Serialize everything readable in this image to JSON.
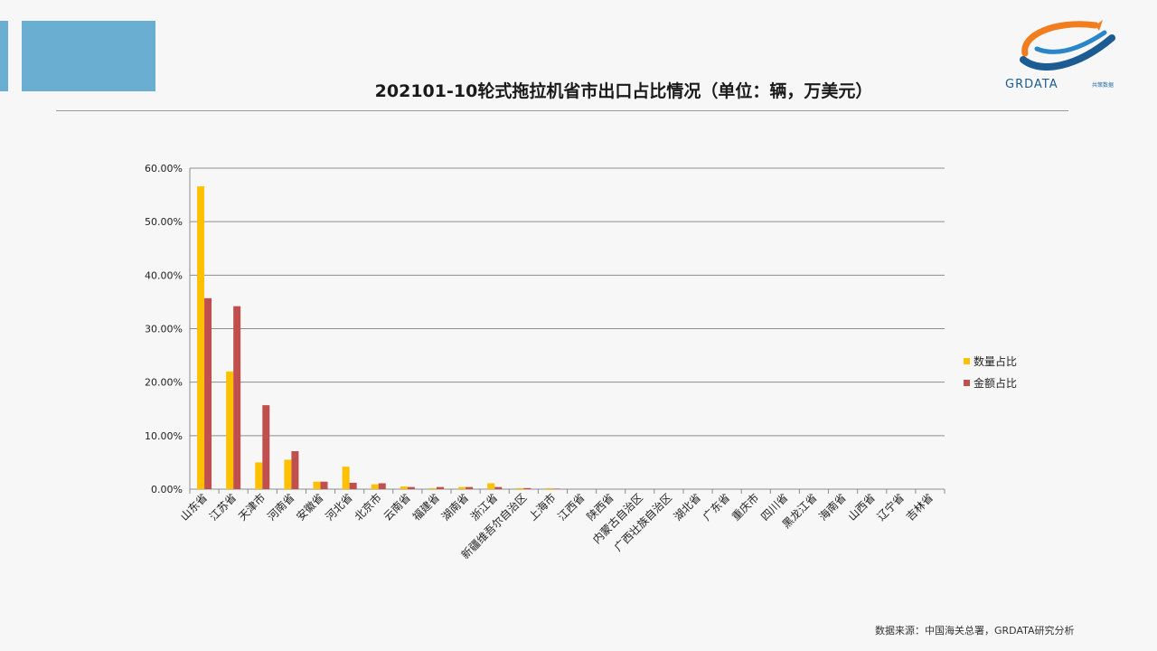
{
  "slide": {
    "title": "202101-10轮式拖拉机省市出口占比情况（单位：辆，万美元）",
    "source": "数据来源：中国海关总署，GRDATA研究分析"
  },
  "logo": {
    "text": "GRDATA",
    "subtext": "共策数据"
  },
  "colors": {
    "accent": "#6aaed2",
    "quantity": "#ffc000",
    "amount": "#c0504d"
  },
  "chart_data": {
    "type": "bar",
    "title": "",
    "xlabel": "",
    "ylabel": "",
    "ylim": [
      0,
      0.6
    ],
    "grid": true,
    "legend_position": "right",
    "y_ticks": [
      "0.00%",
      "10.00%",
      "20.00%",
      "30.00%",
      "40.00%",
      "50.00%",
      "60.00%"
    ],
    "categories": [
      "山东省",
      "江苏省",
      "天津市",
      "河南省",
      "安徽省",
      "河北省",
      "北京市",
      "云南省",
      "福建省",
      "湖南省",
      "浙江省",
      "新疆维吾尔自治区",
      "上海市",
      "江西省",
      "陕西省",
      "内蒙古自治区",
      "广西壮族自治区",
      "湖北省",
      "广东省",
      "重庆市",
      "四川省",
      "黑龙江省",
      "海南省",
      "山西省",
      "辽宁省",
      "吉林省"
    ],
    "series": [
      {
        "name": "数量占比",
        "values": [
          0.566,
          0.22,
          0.05,
          0.055,
          0.014,
          0.042,
          0.009,
          0.005,
          0.002,
          0.004,
          0.011,
          0.002,
          0.002,
          0,
          0,
          0,
          0,
          0,
          0,
          0,
          0,
          0,
          0,
          0,
          0,
          0
        ]
      },
      {
        "name": "金额占比",
        "values": [
          0.357,
          0.342,
          0.157,
          0.071,
          0.014,
          0.012,
          0.011,
          0.004,
          0.004,
          0.004,
          0.004,
          0.002,
          0.001,
          0,
          0,
          0,
          0,
          0,
          0,
          0,
          0,
          0,
          0,
          0,
          0,
          0
        ]
      }
    ]
  }
}
